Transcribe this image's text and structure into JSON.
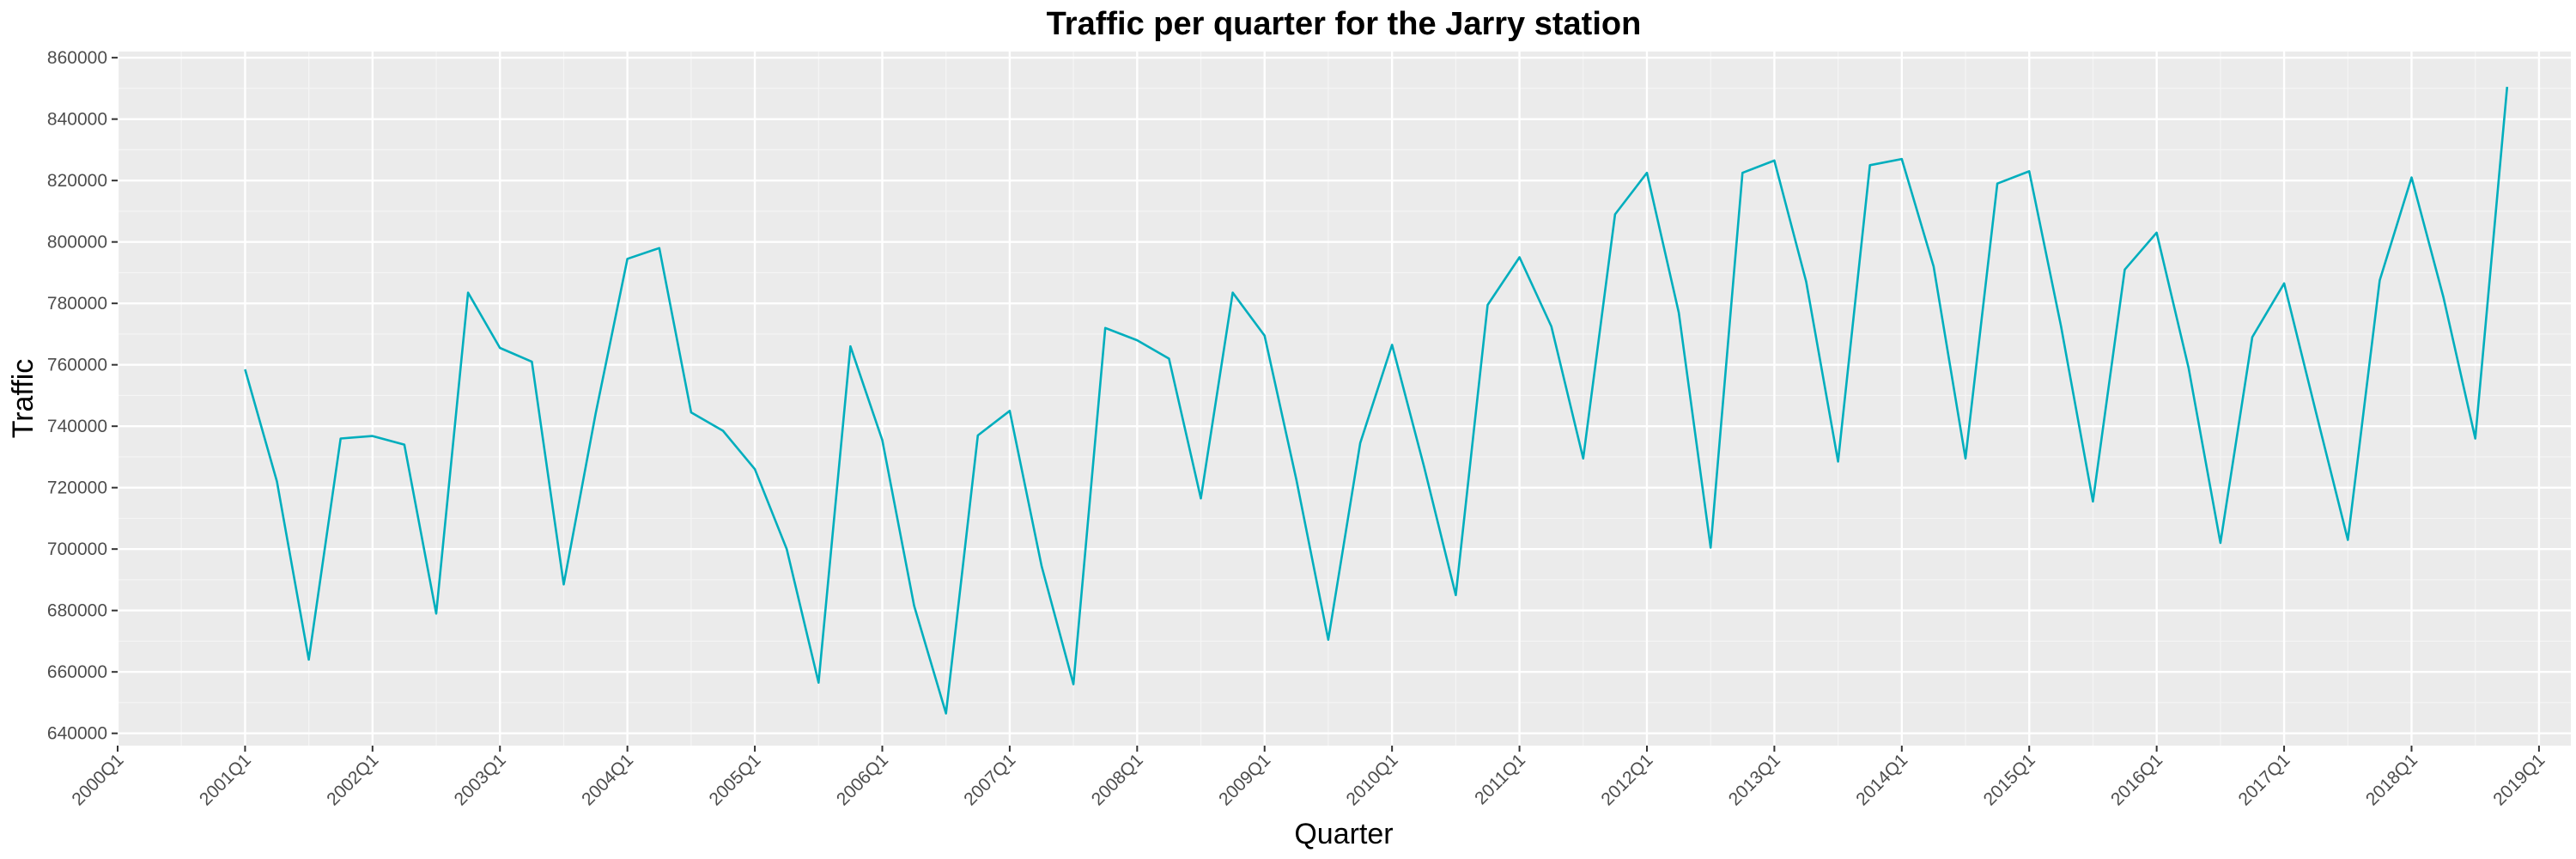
{
  "chart_data": {
    "type": "line",
    "title": "Traffic per quarter for the Jarry station",
    "xlabel": "Quarter",
    "ylabel": "Traffic",
    "x_tick_labels": [
      "2000Q1",
      "2001Q1",
      "2002Q1",
      "2003Q1",
      "2004Q1",
      "2005Q1",
      "2006Q1",
      "2007Q1",
      "2008Q1",
      "2009Q1",
      "2010Q1",
      "2011Q1",
      "2012Q1",
      "2013Q1",
      "2014Q1",
      "2015Q1",
      "2016Q1",
      "2017Q1",
      "2018Q1",
      "2019Q1"
    ],
    "y_tick_values": [
      640000,
      660000,
      680000,
      700000,
      720000,
      740000,
      760000,
      780000,
      800000,
      820000,
      840000,
      860000
    ],
    "ylim": [
      636000,
      862000
    ],
    "xlim_years": [
      2000,
      2019.25
    ],
    "grid": true,
    "series": [
      {
        "color": "#00aebd",
        "x": [
          "2001Q1",
          "2001Q2",
          "2001Q3",
          "2001Q4",
          "2002Q1",
          "2002Q2",
          "2002Q3",
          "2002Q4",
          "2003Q1",
          "2003Q2",
          "2003Q3",
          "2003Q4",
          "2004Q1",
          "2004Q2",
          "2004Q3",
          "2004Q4",
          "2005Q1",
          "2005Q2",
          "2005Q3",
          "2005Q4",
          "2006Q1",
          "2006Q2",
          "2006Q3",
          "2006Q4",
          "2007Q1",
          "2007Q2",
          "2007Q3",
          "2007Q4",
          "2008Q1",
          "2008Q2",
          "2008Q3",
          "2008Q4",
          "2009Q1",
          "2009Q2",
          "2009Q3",
          "2009Q4",
          "2010Q1",
          "2010Q2",
          "2010Q3",
          "2010Q4",
          "2011Q1",
          "2011Q2",
          "2011Q3",
          "2011Q4",
          "2012Q1",
          "2012Q2",
          "2012Q3",
          "2012Q4",
          "2013Q1",
          "2013Q2",
          "2013Q3",
          "2013Q4",
          "2014Q1",
          "2014Q2",
          "2014Q3",
          "2014Q4",
          "2015Q1",
          "2015Q2",
          "2015Q3",
          "2015Q4",
          "2016Q1",
          "2016Q2",
          "2016Q3",
          "2016Q4",
          "2017Q1",
          "2017Q2",
          "2017Q3",
          "2017Q4",
          "2018Q1",
          "2018Q2",
          "2018Q3",
          "2018Q4"
        ],
        "values": [
          758500,
          722000,
          664000,
          736000,
          736800,
          734000,
          679000,
          783500,
          765500,
          761000,
          688500,
          744000,
          794500,
          798000,
          744500,
          738500,
          726000,
          700000,
          656500,
          766000,
          735500,
          681500,
          646500,
          737000,
          745000,
          694500,
          656000,
          772000,
          768000,
          762000,
          716500,
          783500,
          769500,
          722500,
          670500,
          734500,
          766500,
          727000,
          685000,
          779500,
          795000,
          772500,
          729500,
          809000,
          822500,
          777000,
          700500,
          822500,
          826500,
          787000,
          728500,
          825000,
          827000,
          792000,
          729500,
          819000,
          823000,
          772500,
          715500,
          791000,
          803000,
          759000,
          702000,
          769000,
          786500,
          744500,
          703000,
          787500,
          821000,
          782000,
          736000,
          850500
        ]
      }
    ]
  }
}
